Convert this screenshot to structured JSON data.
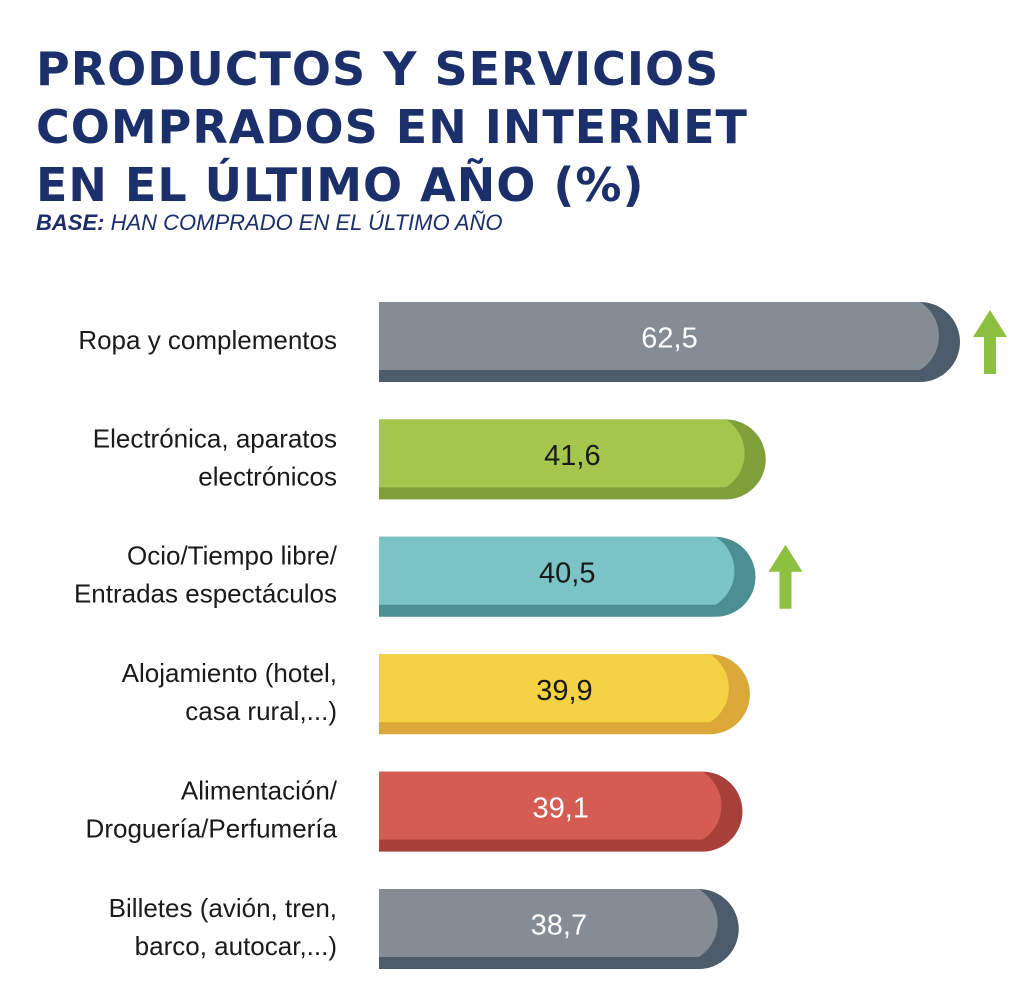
{
  "title": "PRODUCTOS Y SERVICIOS\nCOMPRADOS EN INTERNET\nEN EL ÚLTIMO AÑO (%)",
  "subtitle": {
    "prefix": "BASE:",
    "text": " HAN COMPRADO EN EL ÚLTIMO AÑO"
  },
  "chart_data": {
    "type": "bar",
    "orientation": "horizontal",
    "title": "PRODUCTOS Y SERVICIOS COMPRADOS EN INTERNET EN EL ÚLTIMO AÑO (%)",
    "xlabel": "",
    "ylabel": "",
    "xlim": [
      0,
      62.5
    ],
    "bars": [
      {
        "category": [
          "Ropa y complementos"
        ],
        "value": 62.5,
        "value_label": "62,5",
        "color": "#868c94",
        "dark": "#4c5c6b",
        "text_color": "#ffffff",
        "trend": "up"
      },
      {
        "category": [
          "Electrónica, aparatos",
          "electrónicos"
        ],
        "value": 41.6,
        "value_label": "41,6",
        "color": "#a4c64d",
        "dark": "#7f9f38",
        "text_color": "#1a1a1a",
        "trend": ""
      },
      {
        "category": [
          "Ocio/Tiempo libre/",
          "Entradas espectáculos"
        ],
        "value": 40.5,
        "value_label": "40,5",
        "color": "#7bc3c4",
        "dark": "#4c8f93",
        "text_color": "#1a1a1a",
        "trend": "up"
      },
      {
        "category": [
          "Alojamiento (hotel,",
          "casa rural,...)"
        ],
        "value": 39.9,
        "value_label": "39,9",
        "color": "#f4d244",
        "dark": "#dba83a",
        "text_color": "#1a1a1a",
        "trend": ""
      },
      {
        "category": [
          "Alimentación/",
          "Droguería/Perfumería"
        ],
        "value": 39.1,
        "value_label": "39,1",
        "color": "#d55c52",
        "dark": "#a8403a",
        "text_color": "#ffffff",
        "trend": ""
      },
      {
        "category": [
          "Billetes (avión, tren,",
          "barco, autocar,...)"
        ],
        "value": 38.7,
        "value_label": "38,7",
        "color": "#868c94",
        "dark": "#4c5c6b",
        "text_color": "#ffffff",
        "trend": ""
      }
    ],
    "trend_color": "#8dc040"
  }
}
